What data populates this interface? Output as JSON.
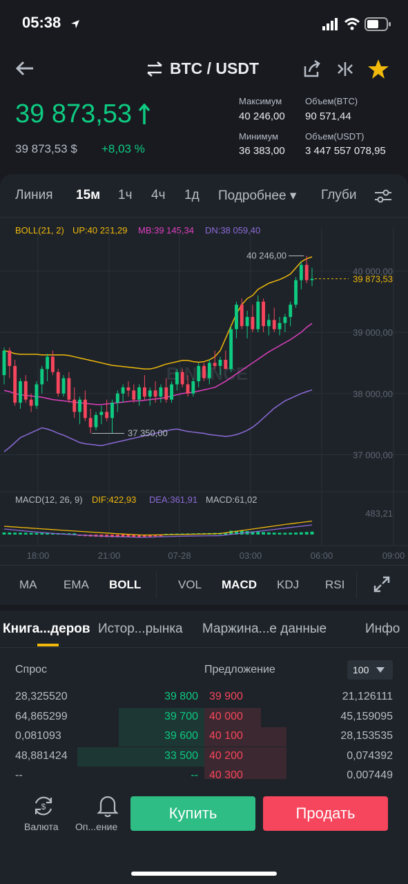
{
  "status": {
    "time": "05:38"
  },
  "header": {
    "pair": "BTC / USDT"
  },
  "price": {
    "last": "39 873,53",
    "usd": "39 873,53 $",
    "change": "+8,03 %"
  },
  "stats": {
    "high_label": "Максимум",
    "high_value": "40 246,00",
    "low_label": "Минимум",
    "low_value": "36 383,00",
    "vol_btc_label": "Объем(BTC)",
    "vol_btc_value": "90 571,44",
    "vol_usdt_label": "Объем(USDT)",
    "vol_usdt_value": "3 447 557 078,95"
  },
  "timeframes": [
    {
      "label": "Линия",
      "active": false
    },
    {
      "label": "15м",
      "active": true
    },
    {
      "label": "1ч",
      "active": false
    },
    {
      "label": "4ч",
      "active": false
    },
    {
      "label": "1д",
      "active": false
    },
    {
      "label": "Подробнее ▾",
      "active": false
    },
    {
      "label": "Глуби",
      "active": false
    }
  ],
  "boll": {
    "name": "BOLL(21, 2)",
    "up": "UP:40 231,29",
    "mb": "MB:39 145,34",
    "dn": "DN:38 059,40",
    "colors": {
      "up": "#f0b90b",
      "mb": "#e040c0",
      "dn": "#8c6bd8"
    }
  },
  "chart_data": {
    "type": "candlestick",
    "ylim": [
      36600,
      40500
    ],
    "y_ticks": [
      "40 000,00",
      "39 000,00",
      "38 000,00",
      "37 000,00"
    ],
    "x_ticks": [
      "18:00",
      "21:00",
      "07-28",
      "03:00",
      "06:00",
      "09:00"
    ],
    "last_price_label": "39 873,53",
    "max_label": "40 246,00",
    "min_label": "37 350,00",
    "watermark": "BINANCE",
    "ohlc": [
      [
        38300,
        38750,
        38150,
        38700
      ],
      [
        38700,
        38750,
        38250,
        38450
      ],
      [
        38450,
        38550,
        37800,
        37850
      ],
      [
        37850,
        38250,
        37750,
        38200
      ],
      [
        38200,
        38300,
        37850,
        37900
      ],
      [
        37900,
        38000,
        37700,
        37800
      ],
      [
        37800,
        38200,
        37750,
        38150
      ],
      [
        38150,
        38450,
        38000,
        38400
      ],
      [
        38400,
        38650,
        38200,
        38600
      ],
      [
        38600,
        38700,
        38300,
        38350
      ],
      [
        38350,
        38400,
        37950,
        38000
      ],
      [
        38000,
        38300,
        37950,
        38250
      ],
      [
        38250,
        38350,
        37850,
        37900
      ],
      [
        37900,
        38100,
        37600,
        37700
      ],
      [
        37700,
        37950,
        37500,
        37900
      ],
      [
        37900,
        38050,
        37550,
        37600
      ],
      [
        37600,
        37750,
        37350,
        37450
      ],
      [
        37450,
        37700,
        37400,
        37650
      ],
      [
        37650,
        37800,
        37500,
        37700
      ],
      [
        37700,
        37900,
        37550,
        37600
      ],
      [
        37600,
        37900,
        37350,
        37850
      ],
      [
        37850,
        38050,
        37700,
        38000
      ],
      [
        38000,
        38150,
        37850,
        38100
      ],
      [
        38100,
        38200,
        37950,
        38050
      ],
      [
        38050,
        38150,
        37850,
        37900
      ],
      [
        37900,
        38150,
        37800,
        38100
      ],
      [
        38100,
        38300,
        37900,
        37950
      ],
      [
        37950,
        38100,
        37800,
        38050
      ],
      [
        38050,
        38200,
        37850,
        37950
      ],
      [
        37950,
        38150,
        37850,
        38100
      ],
      [
        38100,
        38250,
        37850,
        37900
      ],
      [
        37900,
        38200,
        37850,
        38150
      ],
      [
        38150,
        38400,
        38050,
        38350
      ],
      [
        38350,
        38400,
        38100,
        38150
      ],
      [
        38150,
        38300,
        37950,
        38000
      ],
      [
        38000,
        38250,
        37950,
        38200
      ],
      [
        38200,
        38500,
        38100,
        38450
      ],
      [
        38450,
        38500,
        38200,
        38250
      ],
      [
        38250,
        38550,
        38150,
        38500
      ],
      [
        38500,
        38700,
        38400,
        38450
      ],
      [
        38450,
        38600,
        38300,
        38550
      ],
      [
        38550,
        38700,
        38400,
        38400
      ],
      [
        38400,
        39100,
        38350,
        39050
      ],
      [
        39050,
        39500,
        38900,
        39450
      ],
      [
        39450,
        39550,
        39050,
        39100
      ],
      [
        39100,
        39350,
        38900,
        39250
      ],
      [
        39250,
        39450,
        39000,
        39050
      ],
      [
        39050,
        39600,
        39000,
        39500
      ],
      [
        39500,
        39550,
        39000,
        39100
      ],
      [
        39100,
        39300,
        38950,
        39200
      ],
      [
        39200,
        39400,
        39000,
        39050
      ],
      [
        39050,
        39250,
        38950,
        39150
      ],
      [
        39150,
        39300,
        39000,
        39250
      ],
      [
        39250,
        39500,
        39100,
        39450
      ],
      [
        39450,
        39900,
        39400,
        39850
      ],
      [
        39850,
        40150,
        39700,
        40100
      ],
      [
        40100,
        40246,
        39800,
        39850
      ],
      [
        39850,
        40050,
        39750,
        39873
      ]
    ],
    "upper": [
      38700,
      38680,
      38650,
      38640,
      38640,
      38640,
      38640,
      38630,
      38630,
      38630,
      38630,
      38630,
      38620,
      38600,
      38580,
      38560,
      38540,
      38520,
      38500,
      38480,
      38460,
      38450,
      38440,
      38430,
      38420,
      38410,
      38400,
      38400,
      38420,
      38450,
      38480,
      38500,
      38520,
      38540,
      38540,
      38520,
      38510,
      38520,
      38550,
      38600,
      38700,
      38900,
      39100,
      39300,
      39450,
      39550,
      39600,
      39700,
      39750,
      39800,
      39830,
      39860,
      39900,
      39950,
      40050,
      40150,
      40200,
      40231
    ],
    "middle": [
      38050,
      38030,
      38000,
      37980,
      37970,
      37960,
      37950,
      37940,
      37920,
      37900,
      37890,
      37880,
      37870,
      37860,
      37850,
      37840,
      37830,
      37820,
      37820,
      37830,
      37840,
      37850,
      37860,
      37870,
      37880,
      37880,
      37890,
      37900,
      37910,
      37920,
      37940,
      37960,
      37980,
      38000,
      38010,
      38020,
      38040,
      38060,
      38080,
      38100,
      38150,
      38200,
      38260,
      38320,
      38380,
      38440,
      38500,
      38560,
      38620,
      38680,
      38730,
      38780,
      38830,
      38880,
      38940,
      39000,
      39080,
      39145
    ],
    "lower": [
      37050,
      37120,
      37200,
      37280,
      37320,
      37360,
      37400,
      37440,
      37420,
      37390,
      37350,
      37320,
      37280,
      37240,
      37200,
      37180,
      37170,
      37160,
      37150,
      37170,
      37190,
      37210,
      37230,
      37250,
      37270,
      37290,
      37310,
      37330,
      37350,
      37370,
      37390,
      37410,
      37420,
      37400,
      37380,
      37370,
      37360,
      37350,
      37330,
      37320,
      37310,
      37300,
      37310,
      37330,
      37360,
      37400,
      37450,
      37520,
      37600,
      37680,
      37760,
      37820,
      37880,
      37920,
      37960,
      38000,
      38030,
      38059
    ]
  },
  "macd": {
    "name": "MACD(12, 26, 9)",
    "dif": "DIF:422,93",
    "dea": "DEA:361,91",
    "macd": "MACD:61,02",
    "scale_label": "483,21"
  },
  "indicators": [
    {
      "label": "MA",
      "active": false
    },
    {
      "label": "EMA",
      "active": false
    },
    {
      "label": "BOLL",
      "active": true
    },
    {
      "label": "VOL",
      "active": false
    },
    {
      "label": "MACD",
      "active": true
    },
    {
      "label": "KDJ",
      "active": false
    },
    {
      "label": "RSI",
      "active": false
    }
  ],
  "book_tabs": [
    {
      "label": "Книга...деров",
      "active": true
    },
    {
      "label": "Истор...рынка",
      "active": false
    },
    {
      "label": "Маржина...е данные",
      "active": false
    },
    {
      "label": "Инфо",
      "active": false
    }
  ],
  "orderbook": {
    "bid_header": "Спрос",
    "ask_header": "Предложение",
    "depth_select": "100",
    "rows": [
      {
        "bid_qty": "28,325520",
        "bid_price": "39 800",
        "ask_price": "39 900",
        "ask_qty": "21,126111",
        "bid_depth": 0.0,
        "ask_depth": 0.0
      },
      {
        "bid_qty": "64,865299",
        "bid_price": "39 700",
        "ask_price": "40 000",
        "ask_qty": "45,159095",
        "bid_depth": 0.42,
        "ask_depth": 0.31
      },
      {
        "bid_qty": "0,081093",
        "bid_price": "39 600",
        "ask_price": "40 100",
        "ask_qty": "28,153535",
        "bid_depth": 0.42,
        "ask_depth": 0.45
      },
      {
        "bid_qty": "48,881424",
        "bid_price": "33 500",
        "ask_price": "40 200",
        "ask_qty": "0,074392",
        "bid_depth": 0.62,
        "ask_depth": 0.45
      },
      {
        "bid_qty": "--",
        "bid_price": "--",
        "ask_price": "40 300",
        "ask_qty": "0,007449",
        "bid_depth": 0.0,
        "ask_depth": 0.45
      }
    ]
  },
  "bottom": {
    "currency_label": "Валюта",
    "alert_label": "Оп...ение",
    "buy_label": "Купить",
    "sell_label": "Продать"
  },
  "colors": {
    "up": "#0ecb81",
    "down": "#f6465d",
    "accent": "#f0b90b",
    "background": "#181a20",
    "panel": "#1e2329"
  }
}
